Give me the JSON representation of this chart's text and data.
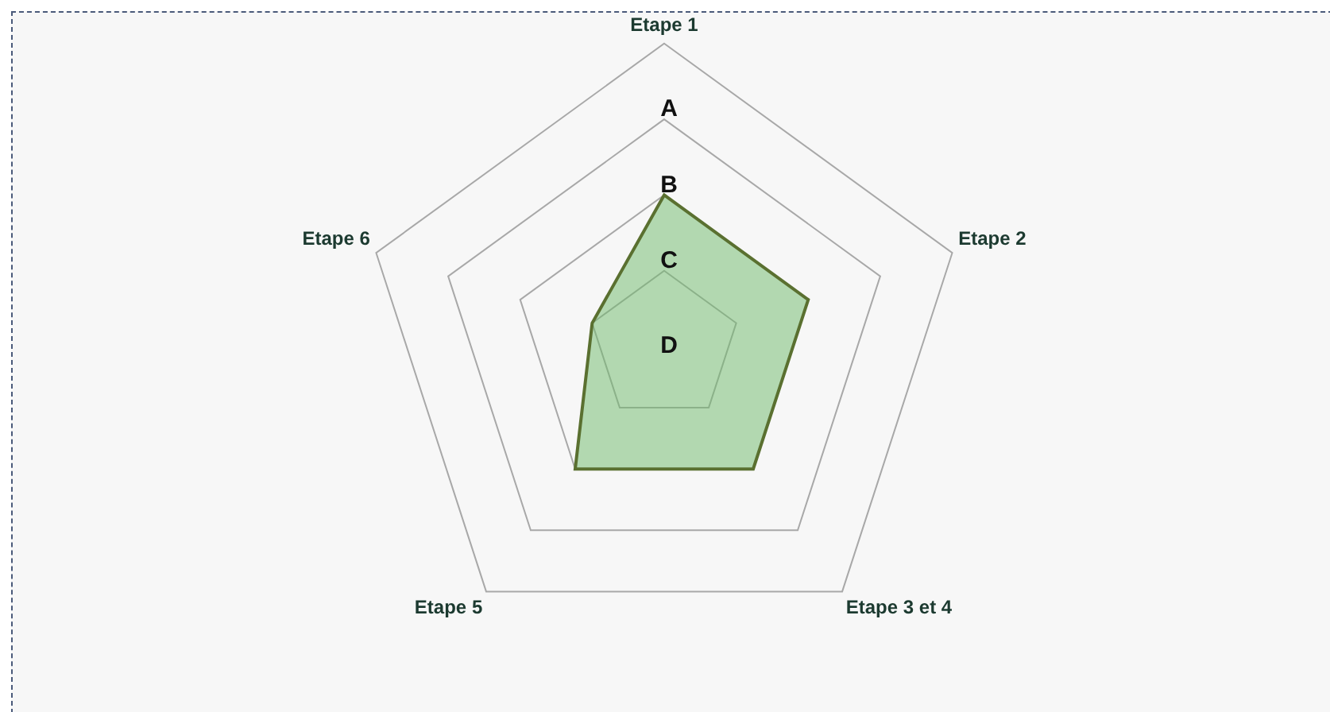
{
  "chart_data": {
    "type": "radar",
    "categories": [
      "Etape 1",
      "Etape 2",
      "Etape 3 et 4",
      "Etape 5",
      "Etape 6"
    ],
    "series": [
      {
        "color": "#5a7030",
        "values": [
          2,
          2,
          2,
          2,
          1
        ]
      }
    ],
    "ylim": [
      0,
      4
    ],
    "yticks": [
      {
        "value": 0,
        "label": "D"
      },
      {
        "value": 1,
        "label": "C"
      },
      {
        "value": 2,
        "label": "B"
      },
      {
        "value": 3,
        "label": "A"
      }
    ],
    "grid": true,
    "legend": false,
    "marker": "none"
  }
}
